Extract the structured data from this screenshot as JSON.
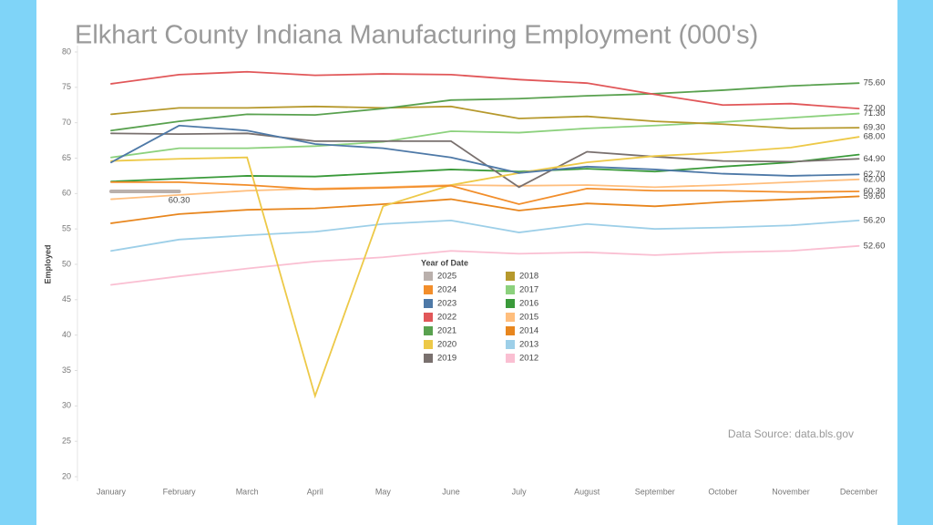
{
  "chart_data": {
    "type": "line",
    "title": "Elkhart County Indiana Manufacturing Employment (000's)",
    "y_label": "Employed",
    "legend_title": "Year of Date",
    "source": "Data Source: data.bls.gov",
    "categories": [
      "January",
      "February",
      "March",
      "April",
      "May",
      "June",
      "July",
      "August",
      "September",
      "October",
      "November",
      "December"
    ],
    "ylim": [
      20,
      80
    ],
    "yticks": [
      20,
      25,
      30,
      35,
      40,
      45,
      50,
      55,
      60,
      65,
      70,
      75,
      80
    ],
    "grid": false,
    "series": [
      {
        "name": "2025",
        "color": "#bab0ac",
        "values": [
          60.3,
          60.3,
          null,
          null,
          null,
          null,
          null,
          null,
          null,
          null,
          null,
          null
        ],
        "value_labels": [
          null,
          "60.30",
          null,
          null,
          null,
          null,
          null,
          null,
          null,
          null,
          null,
          null
        ]
      },
      {
        "name": "2024",
        "color": "#f28e2b",
        "values": [
          61.6,
          61.6,
          61.2,
          60.6,
          60.8,
          61.1,
          58.5,
          60.7,
          60.4,
          60.4,
          60.2,
          60.3
        ],
        "value_labels": [
          null,
          null,
          null,
          null,
          null,
          null,
          null,
          null,
          null,
          null,
          null,
          "60.30"
        ]
      },
      {
        "name": "2023",
        "color": "#4e79a7",
        "values": [
          64.4,
          69.6,
          68.9,
          67.0,
          66.4,
          65.1,
          62.9,
          63.8,
          63.4,
          62.8,
          62.5,
          62.7
        ],
        "value_labels": [
          null,
          null,
          null,
          null,
          null,
          null,
          null,
          null,
          null,
          null,
          null,
          "62.70"
        ]
      },
      {
        "name": "2022",
        "color": "#e15759",
        "values": [
          75.5,
          76.8,
          77.2,
          76.7,
          76.9,
          76.8,
          76.1,
          75.6,
          74.0,
          72.5,
          72.7,
          72.0
        ],
        "value_labels": [
          null,
          null,
          null,
          null,
          null,
          null,
          null,
          null,
          null,
          null,
          null,
          "72.00"
        ]
      },
      {
        "name": "2021",
        "color": "#59a14f",
        "values": [
          68.9,
          70.2,
          71.2,
          71.1,
          72.0,
          73.2,
          73.4,
          73.8,
          74.1,
          74.6,
          75.2,
          75.6
        ],
        "value_labels": [
          null,
          null,
          null,
          null,
          null,
          null,
          null,
          null,
          null,
          null,
          null,
          "75.60"
        ]
      },
      {
        "name": "2020",
        "color": "#edc948",
        "values": [
          64.6,
          64.9,
          65.1,
          31.4,
          58.2,
          61.2,
          62.9,
          64.4,
          65.3,
          65.8,
          66.5,
          68.0
        ],
        "value_labels": [
          null,
          null,
          null,
          null,
          null,
          null,
          null,
          null,
          null,
          null,
          null,
          "68.00"
        ]
      },
      {
        "name": "2019",
        "color": "#79706e",
        "values": [
          68.5,
          68.4,
          68.5,
          67.4,
          67.4,
          67.4,
          60.9,
          65.9,
          65.2,
          64.6,
          64.5,
          64.9
        ],
        "value_labels": [
          null,
          null,
          null,
          null,
          null,
          null,
          null,
          null,
          null,
          null,
          null,
          "64.90"
        ]
      },
      {
        "name": "2018",
        "color": "#b6992d",
        "values": [
          71.2,
          72.1,
          72.1,
          72.3,
          72.1,
          72.3,
          70.6,
          70.9,
          70.2,
          69.8,
          69.2,
          69.3
        ],
        "value_labels": [
          null,
          null,
          null,
          null,
          null,
          null,
          null,
          null,
          null,
          null,
          null,
          "69.30"
        ]
      },
      {
        "name": "2017",
        "color": "#8cd17d",
        "values": [
          65.1,
          66.4,
          66.4,
          66.7,
          67.3,
          68.8,
          68.6,
          69.2,
          69.6,
          70.1,
          70.7,
          71.3
        ],
        "value_labels": [
          null,
          null,
          null,
          null,
          null,
          null,
          null,
          null,
          null,
          null,
          null,
          "71.30"
        ]
      },
      {
        "name": "2016",
        "color": "#3a9a3a",
        "values": [
          61.7,
          62.1,
          62.5,
          62.4,
          62.9,
          63.4,
          63.1,
          63.5,
          63.1,
          63.8,
          64.4,
          65.5
        ]
      },
      {
        "name": "2015",
        "color": "#ffbe7d",
        "values": [
          59.2,
          59.8,
          60.4,
          60.7,
          60.9,
          61.2,
          61.1,
          61.2,
          60.9,
          61.2,
          61.6,
          62.0
        ],
        "value_labels": [
          null,
          null,
          null,
          null,
          null,
          null,
          null,
          null,
          null,
          null,
          null,
          "62.00"
        ]
      },
      {
        "name": "2014",
        "color": "#e8861e",
        "values": [
          55.8,
          57.1,
          57.7,
          57.9,
          58.5,
          59.2,
          57.6,
          58.6,
          58.2,
          58.8,
          59.2,
          59.6
        ],
        "value_labels": [
          null,
          null,
          null,
          null,
          null,
          null,
          null,
          null,
          null,
          null,
          null,
          "59.60"
        ]
      },
      {
        "name": "2013",
        "color": "#9dcfe8",
        "values": [
          51.9,
          53.5,
          54.1,
          54.6,
          55.7,
          56.2,
          54.5,
          55.7,
          55.0,
          55.2,
          55.5,
          56.2
        ],
        "value_labels": [
          null,
          null,
          null,
          null,
          null,
          null,
          null,
          null,
          null,
          null,
          null,
          "56.20"
        ]
      },
      {
        "name": "2012",
        "color": "#fabfd2",
        "values": [
          47.1,
          48.3,
          49.4,
          50.4,
          51.0,
          51.9,
          51.5,
          51.7,
          51.3,
          51.7,
          51.9,
          52.6
        ],
        "value_labels": [
          null,
          null,
          null,
          null,
          null,
          null,
          null,
          null,
          null,
          null,
          null,
          "52.60"
        ]
      }
    ]
  }
}
